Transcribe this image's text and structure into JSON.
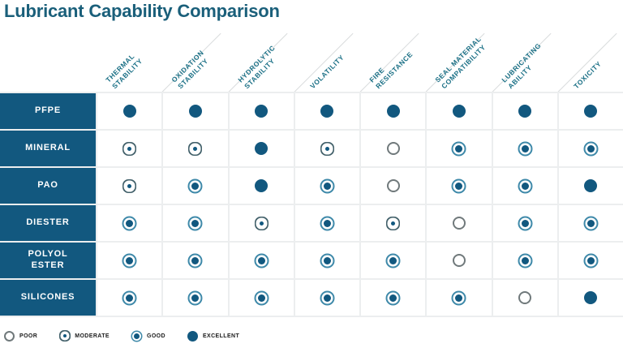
{
  "title": "Lubricant Capability Comparison",
  "chart_data": {
    "type": "table",
    "title": "Lubricant Capability Comparison",
    "columns": [
      "THERMAL STABILITY",
      "OXIDATION STABILITY",
      "HYDROLYTIC STABILITY",
      "VOLATILITY",
      "FIRE RESISTANCE",
      "SEAL MATERIAL COMPATIBILITY",
      "LUBRICATING ABILITY",
      "TOXICITY"
    ],
    "rows": [
      "PFPE",
      "MINERAL",
      "PAO",
      "DIESTER",
      "POLYOL ESTER",
      "SILICONES"
    ],
    "rating_scale": [
      "poor",
      "moderate",
      "good",
      "excellent"
    ],
    "ratings": [
      [
        "excellent",
        "excellent",
        "excellent",
        "excellent",
        "excellent",
        "excellent",
        "excellent",
        "excellent"
      ],
      [
        "moderate",
        "moderate",
        "excellent",
        "moderate",
        "poor",
        "good",
        "good",
        "good"
      ],
      [
        "moderate",
        "good",
        "excellent",
        "good",
        "poor",
        "good",
        "good",
        "excellent"
      ],
      [
        "good",
        "good",
        "moderate",
        "good",
        "moderate",
        "poor",
        "good",
        "good"
      ],
      [
        "good",
        "good",
        "good",
        "good",
        "good",
        "poor",
        "good",
        "good"
      ],
      [
        "good",
        "good",
        "good",
        "good",
        "good",
        "good",
        "poor",
        "excellent"
      ]
    ]
  },
  "header_lines": [
    [
      "THERMAL",
      "STABILITY"
    ],
    [
      "OXIDATION",
      "STABILITY"
    ],
    [
      "HYDROLYTIC",
      "STABILITY"
    ],
    [
      "VOLATILITY"
    ],
    [
      "FIRE",
      "RESISTANCE"
    ],
    [
      "SEAL MATERIAL",
      "COMPATIBILITY"
    ],
    [
      "LUBRICATING",
      "ABILITY"
    ],
    [
      "TOXICITY"
    ]
  ],
  "row_label_lines": [
    [
      "PFPE"
    ],
    [
      "MINERAL"
    ],
    [
      "PAO"
    ],
    [
      "DIESTER"
    ],
    [
      "POLYOL",
      "ESTER"
    ],
    [
      "SILICONES"
    ]
  ],
  "legend": [
    {
      "value": "poor",
      "label": "POOR"
    },
    {
      "value": "moderate",
      "label": "MODERATE"
    },
    {
      "value": "good",
      "label": "GOOD"
    },
    {
      "value": "excellent",
      "label": "EXCELLENT"
    }
  ],
  "colors": {
    "title_text": "#1a5f7a",
    "header_text": "#1b7086",
    "row_label_bg": "#12587f",
    "rating_fill": "#12587f",
    "good_ring": "#3e89a9",
    "moderate_ring": "#42606a",
    "poor_ring": "#70797b",
    "grid_gap": "#eceeef",
    "cell_bg": "#ffffff",
    "legend_text": "#1a1a1a"
  }
}
